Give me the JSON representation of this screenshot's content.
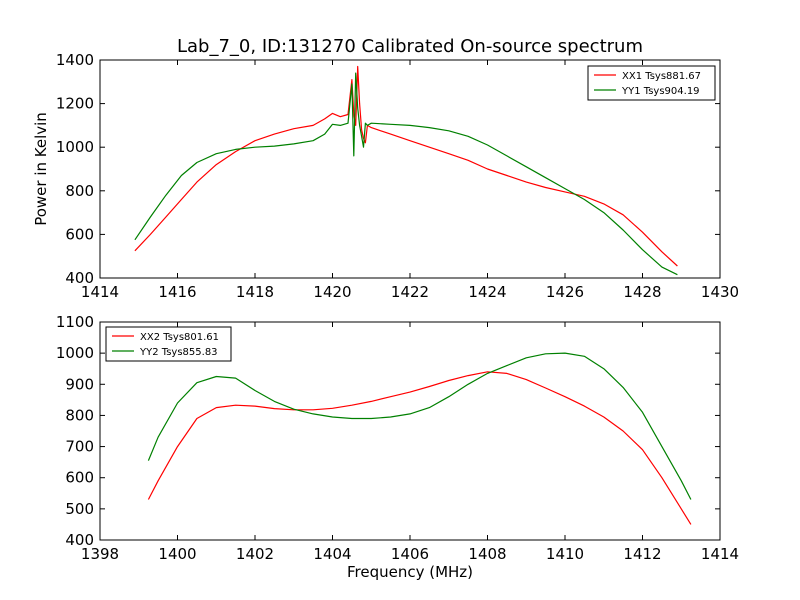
{
  "chart_data": [
    {
      "type": "line",
      "title": "Lab_7_0, ID:131270 Calibrated On-source spectrum",
      "xlabel": "",
      "ylabel": "Power in Kelvin",
      "xlim": [
        1414,
        1430
      ],
      "ylim": [
        400,
        1400
      ],
      "xticks": [
        1414,
        1416,
        1418,
        1420,
        1422,
        1424,
        1426,
        1428,
        1430
      ],
      "yticks": [
        400,
        600,
        800,
        1000,
        1200,
        1400
      ],
      "legend_position": "top-right",
      "series": [
        {
          "name": "XX1 Tsys881.67",
          "color": "#ff0000",
          "x": [
            1414.9,
            1415.3,
            1415.7,
            1416.1,
            1416.5,
            1417.0,
            1417.5,
            1418.0,
            1418.5,
            1419.0,
            1419.5,
            1419.8,
            1420.0,
            1420.2,
            1420.4,
            1420.5,
            1420.55,
            1420.6,
            1420.65,
            1420.7,
            1420.75,
            1420.8,
            1420.85,
            1420.9,
            1421.0,
            1421.5,
            1422.0,
            1422.5,
            1423.0,
            1423.5,
            1424.0,
            1424.5,
            1425.0,
            1425.5,
            1426.0,
            1426.5,
            1427.0,
            1427.5,
            1428.0,
            1428.5,
            1428.9
          ],
          "values": [
            525,
            600,
            680,
            760,
            840,
            920,
            980,
            1030,
            1060,
            1085,
            1100,
            1130,
            1155,
            1140,
            1150,
            1310,
            1150,
            1100,
            1370,
            1200,
            1080,
            1040,
            1020,
            1100,
            1090,
            1060,
            1030,
            1000,
            970,
            940,
            900,
            870,
            840,
            815,
            795,
            775,
            740,
            690,
            610,
            520,
            455
          ]
        },
        {
          "name": "YY1 Tsys904.19",
          "color": "#008000",
          "x": [
            1414.9,
            1415.3,
            1415.7,
            1416.1,
            1416.5,
            1417.0,
            1417.5,
            1418.0,
            1418.5,
            1419.0,
            1419.5,
            1419.8,
            1420.0,
            1420.2,
            1420.4,
            1420.5,
            1420.55,
            1420.6,
            1420.65,
            1420.7,
            1420.75,
            1420.8,
            1420.85,
            1420.9,
            1421.0,
            1421.5,
            1422.0,
            1422.5,
            1423.0,
            1423.5,
            1424.0,
            1424.5,
            1425.0,
            1425.5,
            1426.0,
            1426.5,
            1427.0,
            1427.5,
            1428.0,
            1428.5,
            1428.9
          ],
          "values": [
            575,
            680,
            780,
            870,
            930,
            970,
            990,
            1000,
            1005,
            1015,
            1030,
            1060,
            1105,
            1100,
            1110,
            1290,
            960,
            1340,
            1180,
            1100,
            1050,
            1000,
            1110,
            1100,
            1110,
            1105,
            1100,
            1090,
            1075,
            1050,
            1010,
            960,
            910,
            860,
            810,
            760,
            700,
            620,
            530,
            450,
            415
          ]
        }
      ]
    },
    {
      "type": "line",
      "title": "",
      "xlabel": "Frequency (MHz)",
      "ylabel": "",
      "xlim": [
        1398,
        1414
      ],
      "ylim": [
        400,
        1100
      ],
      "xticks": [
        1398,
        1400,
        1402,
        1404,
        1406,
        1408,
        1410,
        1412,
        1414
      ],
      "yticks": [
        400,
        500,
        600,
        700,
        800,
        900,
        1000,
        1100
      ],
      "legend_position": "top-left",
      "series": [
        {
          "name": "XX2 Tsys801.61",
          "color": "#ff0000",
          "x": [
            1399.25,
            1399.5,
            1400.0,
            1400.5,
            1401.0,
            1401.5,
            1402.0,
            1402.5,
            1403.0,
            1403.5,
            1404.0,
            1404.5,
            1405.0,
            1405.5,
            1406.0,
            1406.5,
            1407.0,
            1407.5,
            1408.0,
            1408.5,
            1409.0,
            1409.5,
            1410.0,
            1410.5,
            1411.0,
            1411.5,
            1412.0,
            1412.5,
            1413.0,
            1413.25
          ],
          "values": [
            530,
            590,
            700,
            790,
            825,
            833,
            830,
            822,
            818,
            818,
            823,
            833,
            845,
            860,
            875,
            893,
            912,
            928,
            940,
            935,
            915,
            888,
            860,
            830,
            795,
            750,
            690,
            600,
            500,
            450
          ]
        },
        {
          "name": "YY2 Tsys855.83",
          "color": "#008000",
          "x": [
            1399.25,
            1399.5,
            1400.0,
            1400.5,
            1401.0,
            1401.5,
            1402.0,
            1402.5,
            1403.0,
            1403.5,
            1404.0,
            1404.5,
            1405.0,
            1405.5,
            1406.0,
            1406.5,
            1407.0,
            1407.5,
            1408.0,
            1408.5,
            1409.0,
            1409.5,
            1410.0,
            1410.5,
            1411.0,
            1411.5,
            1412.0,
            1412.5,
            1413.0,
            1413.25
          ],
          "values": [
            655,
            730,
            840,
            905,
            925,
            920,
            880,
            845,
            820,
            805,
            795,
            790,
            790,
            795,
            805,
            825,
            860,
            900,
            935,
            960,
            985,
            998,
            1000,
            990,
            950,
            890,
            810,
            700,
            590,
            530
          ]
        }
      ]
    }
  ]
}
